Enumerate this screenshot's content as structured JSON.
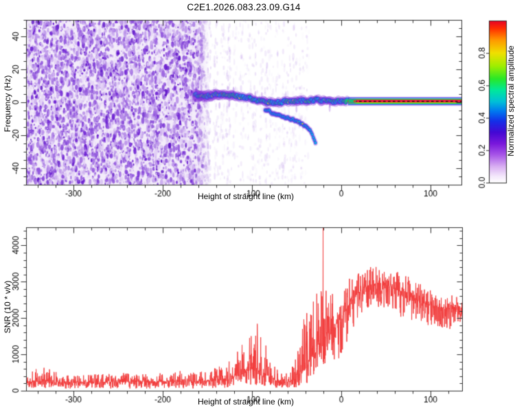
{
  "title": "C2E1.2026.083.23.09.G14",
  "panels": {
    "spectrogram": {
      "xlabel": "Height of straight line (km)",
      "ylabel": "Frequency (Hz)",
      "colorbar_label": "Normalized spectral amplitude"
    },
    "snr": {
      "xlabel": "Height of straight line (km)",
      "ylabel": "SNR (10 * v/v)"
    }
  },
  "colors": {
    "axis": "#2e2e2e",
    "text": "#000000",
    "snr_line": "#f23c3c",
    "noise_bg": "#f3ecfa",
    "noise_blobs": [
      "#e3d2f6",
      "#bb93ea",
      "#9257dd",
      "#6c1fd2",
      "#5a0ec6"
    ],
    "streak": "#b48ae8",
    "halo": "#7e2cd8",
    "blue": "#2636e8",
    "cyan": "#00c8e0",
    "green": "#00e464",
    "yellow": "#ffdf00",
    "orange": "#ff9000",
    "red": "#ff2414",
    "plateau_red": "#ea1244",
    "plateau_green": "#00cc3c",
    "plateau_blue": "#2a46f0",
    "plateau_yellow": "#f0e000",
    "plateau_dash": "#1c0c08"
  },
  "chart_data": [
    {
      "id": "doppler-spectrogram",
      "type": "heatmap",
      "title": "C2E1.2026.083.23.09.G14",
      "xlabel": "Height of straight line (km)",
      "ylabel": "Frequency (Hz)",
      "xlim": [
        -353,
        135
      ],
      "ylim": [
        -50,
        50
      ],
      "xticks": [
        -300,
        -200,
        -100,
        0,
        100
      ],
      "yticks": [
        -40,
        -20,
        0,
        20,
        40
      ],
      "x_minor_step": 20,
      "y_minor_step": 5,
      "grid": false,
      "colorbar": {
        "label": "Normalized spectral amplitude",
        "ticks": [
          0.0,
          0.2,
          0.4,
          0.6,
          0.8
        ],
        "range": [
          0,
          1
        ],
        "stops": [
          [
            0.0,
            "#ffffff"
          ],
          [
            0.04,
            "#f4e8fc"
          ],
          [
            0.1,
            "#d8aef2"
          ],
          [
            0.17,
            "#a958e8"
          ],
          [
            0.24,
            "#7a18dc"
          ],
          [
            0.31,
            "#4408d4"
          ],
          [
            0.38,
            "#1430e8"
          ],
          [
            0.44,
            "#0078f0"
          ],
          [
            0.5,
            "#00c0d8"
          ],
          [
            0.57,
            "#00e89c"
          ],
          [
            0.64,
            "#28e828"
          ],
          [
            0.72,
            "#a0ee00"
          ],
          [
            0.8,
            "#f0e000"
          ],
          [
            0.88,
            "#ff9800"
          ],
          [
            0.95,
            "#ff3000"
          ],
          [
            1.0,
            "#e80028"
          ]
        ]
      },
      "noise_field": {
        "x_range": [
          -353,
          -152
        ],
        "amplitude_level": 0.15,
        "blob_count": 5600
      },
      "streak_columns": [
        [
          -158,
          0.9
        ],
        [
          -148,
          0.8
        ],
        [
          -140,
          0.6
        ],
        [
          -133,
          0.5
        ],
        [
          -126,
          0.7
        ],
        [
          -119,
          0.4
        ],
        [
          -111,
          0.5
        ],
        [
          -103,
          0.35
        ],
        [
          -97,
          0.45
        ],
        [
          -90,
          0.4
        ],
        [
          -84,
          0.55
        ],
        [
          -78,
          0.35
        ],
        [
          -71,
          0.45
        ],
        [
          -64,
          0.5
        ],
        [
          -58,
          0.4
        ],
        [
          -52,
          0.45
        ],
        [
          -45,
          0.3
        ],
        [
          -38,
          0.25
        ]
      ],
      "main_trace_km_hz": [
        [
          -164,
          4.0
        ],
        [
          -157,
          4.5
        ],
        [
          -150,
          4.0
        ],
        [
          -143,
          4.8
        ],
        [
          -136,
          4.2
        ],
        [
          -129,
          4.6
        ],
        [
          -122,
          4.0
        ],
        [
          -115,
          3.4
        ],
        [
          -108,
          2.8
        ],
        [
          -101,
          2.2
        ],
        [
          -94,
          1.4
        ],
        [
          -87,
          0.6
        ],
        [
          -80,
          0.2
        ],
        [
          -73,
          -0.2
        ],
        [
          -66,
          0.4
        ],
        [
          -59,
          0.8
        ],
        [
          -52,
          0.4
        ],
        [
          -46,
          1.0
        ],
        [
          -40,
          0.6
        ],
        [
          -34,
          1.2
        ],
        [
          -28,
          1.6
        ],
        [
          -22,
          1.2
        ],
        [
          -16,
          0.8
        ],
        [
          -10,
          0.8
        ],
        [
          -4,
          0.6
        ],
        [
          2,
          0.6
        ],
        [
          8,
          0.6
        ]
      ],
      "branch_trace_km_hz": [
        [
          -85,
          -4.5
        ],
        [
          -79,
          -5.8
        ],
        [
          -73,
          -7.0
        ],
        [
          -67,
          -8.2
        ],
        [
          -61,
          -9.3
        ],
        [
          -55,
          -10.3
        ],
        [
          -49,
          -11.5
        ],
        [
          -44,
          -12.8
        ],
        [
          -39,
          -14.6
        ],
        [
          -35,
          -17.0
        ],
        [
          -32,
          -20.0
        ],
        [
          -30,
          -22.5
        ],
        [
          -28,
          -25.0
        ]
      ],
      "plateau": {
        "x_start": 8,
        "freq_center": 0.6,
        "layers": [
          [
            2.6,
            "halo",
            1.0,
            0.4
          ],
          [
            2.0,
            "plateau_blue",
            1.3,
            1.0
          ],
          [
            1.25,
            "plateau_green",
            1.6,
            1.0
          ],
          [
            0.8,
            "plateau_yellow",
            1.0,
            1.0
          ],
          [
            0.0,
            "plateau_red",
            4.6,
            1.0
          ],
          [
            -0.8,
            "plateau_yellow",
            1.0,
            1.0
          ],
          [
            -1.25,
            "plateau_green",
            1.6,
            1.0
          ],
          [
            -2.0,
            "plateau_blue",
            1.3,
            1.0
          ],
          [
            -2.6,
            "halo",
            1.0,
            0.4
          ]
        ]
      }
    },
    {
      "id": "snr-profile",
      "type": "line",
      "xlabel": "Height of straight line (km)",
      "ylabel": "SNR (10 * v/v)",
      "xlim": [
        -353,
        135
      ],
      "ylim": [
        0,
        4500
      ],
      "xticks": [
        -300,
        -200,
        -100,
        0,
        100
      ],
      "yticks": [
        0,
        1000,
        2000,
        3000,
        4000
      ],
      "x_minor_step": 20,
      "y_minor_step": 200,
      "grid": false,
      "envelope_km_lo_mid_hi": [
        [
          -353,
          60,
          240,
          430
        ],
        [
          -335,
          70,
          260,
          700
        ],
        [
          -320,
          60,
          240,
          520
        ],
        [
          -300,
          55,
          230,
          430
        ],
        [
          -280,
          60,
          240,
          480
        ],
        [
          -260,
          60,
          240,
          460
        ],
        [
          -240,
          60,
          250,
          520
        ],
        [
          -220,
          60,
          250,
          480
        ],
        [
          -200,
          60,
          255,
          500
        ],
        [
          -185,
          60,
          260,
          560
        ],
        [
          -170,
          60,
          260,
          520
        ],
        [
          -155,
          65,
          270,
          560
        ],
        [
          -142,
          70,
          290,
          650
        ],
        [
          -130,
          80,
          330,
          800
        ],
        [
          -120,
          90,
          380,
          950
        ],
        [
          -112,
          110,
          450,
          1300
        ],
        [
          -105,
          130,
          550,
          1750
        ],
        [
          -98,
          150,
          600,
          1950
        ],
        [
          -92,
          140,
          550,
          1800
        ],
        [
          -86,
          120,
          480,
          1500
        ],
        [
          -80,
          100,
          380,
          1100
        ],
        [
          -74,
          80,
          280,
          650
        ],
        [
          -68,
          70,
          240,
          480
        ],
        [
          -62,
          70,
          240,
          500
        ],
        [
          -56,
          80,
          270,
          650
        ],
        [
          -50,
          100,
          350,
          1100
        ],
        [
          -45,
          130,
          480,
          1700
        ],
        [
          -40,
          180,
          650,
          2300
        ],
        [
          -35,
          250,
          850,
          2750
        ],
        [
          -30,
          350,
          1050,
          2900
        ],
        [
          -26,
          450,
          1250,
          2950
        ],
        [
          -22,
          550,
          1400,
          3000
        ],
        [
          -18,
          600,
          1500,
          2950
        ],
        [
          -14,
          650,
          1600,
          2900
        ],
        [
          -10,
          700,
          1700,
          2850
        ],
        [
          -6,
          800,
          1850,
          2900
        ],
        [
          -2,
          900,
          1950,
          2950
        ],
        [
          2,
          1100,
          2100,
          3000
        ],
        [
          8,
          1400,
          2350,
          3100
        ],
        [
          15,
          1700,
          2600,
          3250
        ],
        [
          22,
          1900,
          2750,
          3350
        ],
        [
          30,
          2100,
          2900,
          3420
        ],
        [
          38,
          2200,
          2950,
          3450
        ],
        [
          45,
          2250,
          2950,
          3420
        ],
        [
          52,
          2200,
          2900,
          3380
        ],
        [
          60,
          2100,
          2800,
          3300
        ],
        [
          70,
          2000,
          2700,
          3200
        ],
        [
          80,
          1900,
          2550,
          3080
        ],
        [
          90,
          1800,
          2450,
          2950
        ],
        [
          100,
          1750,
          2350,
          2850
        ],
        [
          110,
          1700,
          2300,
          2750
        ],
        [
          120,
          1650,
          2250,
          2650
        ],
        [
          133,
          1700,
          2250,
          2600
        ]
      ],
      "spikes_km_value": [
        [
          -20.6,
          4500
        ],
        [
          -21.8,
          2600
        ]
      ]
    }
  ]
}
